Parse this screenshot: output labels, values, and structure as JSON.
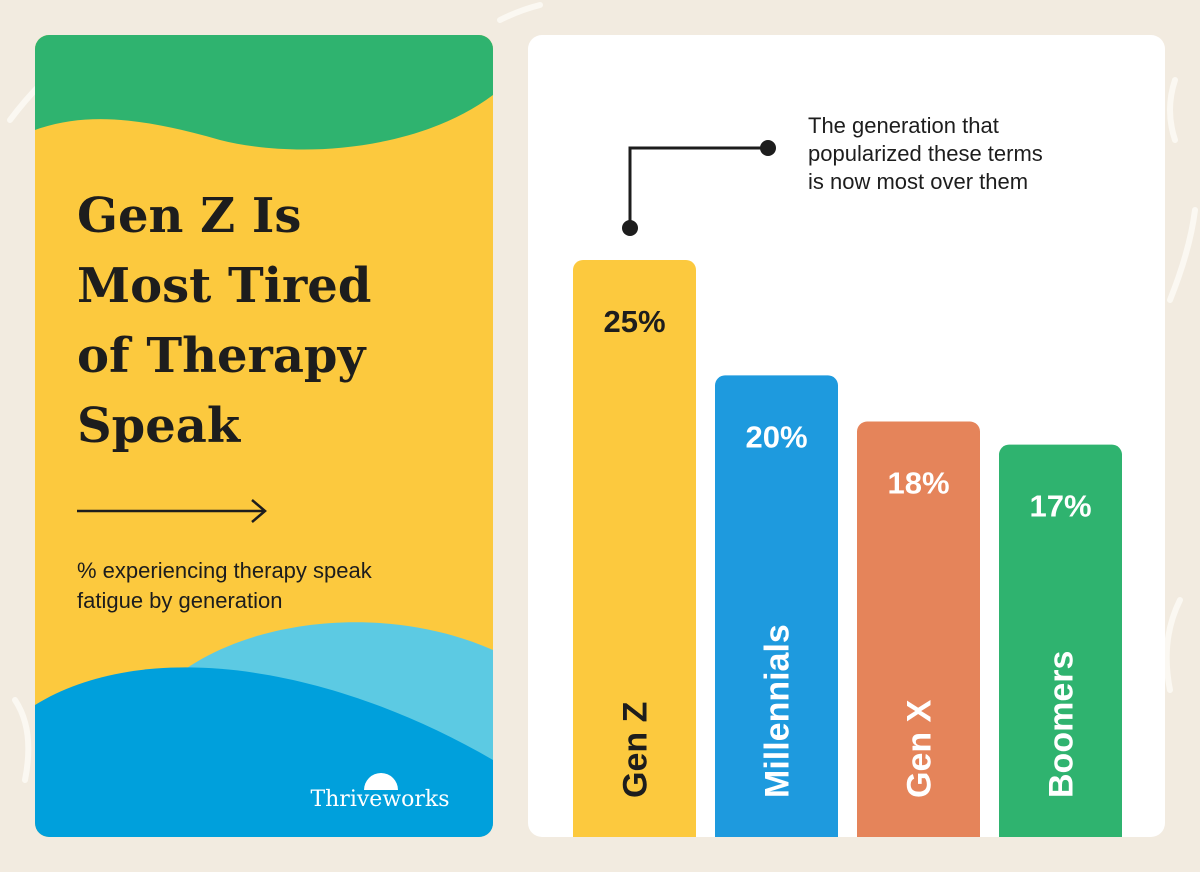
{
  "chart_data": {
    "type": "bar",
    "title_lines": [
      "Gen Z Is",
      "Most Tired",
      "of Therapy",
      "Speak"
    ],
    "subtitle_lines": [
      "% experiencing therapy speak",
      "fatigue by generation"
    ],
    "annotation_lines": [
      "The generation that",
      "popularized these terms",
      "is now most over them"
    ],
    "brand": "Thriveworks",
    "categories": [
      "Gen Z",
      "Millennials",
      "Gen X",
      "Boomers"
    ],
    "values": [
      25,
      20,
      18,
      17
    ],
    "value_labels": [
      "25%",
      "20%",
      "18%",
      "17%"
    ],
    "colors": [
      "#fcc93e",
      "#1e9ade",
      "#e5845a",
      "#2fb36f"
    ],
    "label_colors": [
      "#1d1d1d",
      "#ffffff",
      "#ffffff",
      "#ffffff"
    ]
  }
}
